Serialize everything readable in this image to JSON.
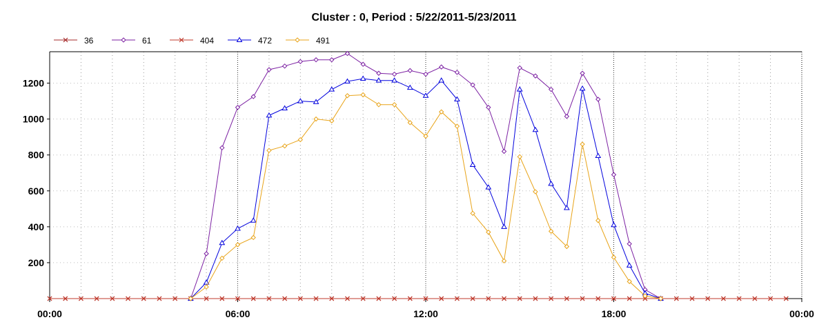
{
  "chart_data": {
    "type": "line",
    "title": "Cluster : 0, Period : 5/22/2011-5/23/2011",
    "xlabel": "",
    "ylabel": "",
    "x_unit": "hours",
    "xlim": [
      0,
      24
    ],
    "ylim": [
      0,
      1375
    ],
    "x_tick_values": [
      0,
      6,
      12,
      18,
      24
    ],
    "x_tick_labels": [
      "00:00",
      "06:00",
      "12:00",
      "18:00",
      "00:00"
    ],
    "y_ticks": [
      200,
      400,
      600,
      800,
      1000,
      1200
    ],
    "grid": true,
    "legend_placement": "top-left",
    "x": [
      0,
      0.5,
      1,
      1.5,
      2,
      2.5,
      3,
      3.5,
      4,
      4.5,
      5,
      5.5,
      6,
      6.5,
      7,
      7.5,
      8,
      8.5,
      9,
      9.5,
      10,
      10.5,
      11,
      11.5,
      12,
      12.5,
      13,
      13.5,
      14,
      14.5,
      15,
      15.5,
      16,
      16.5,
      17,
      17.5,
      18,
      18.5,
      19,
      19.5,
      20,
      20.5,
      21,
      21.5,
      22,
      22.5,
      23,
      23.5
    ],
    "series": [
      {
        "name": "36",
        "color": "#a52a2a",
        "marker": "x",
        "values": [
          0,
          0,
          0,
          0,
          0,
          0,
          0,
          0,
          0,
          0,
          0,
          0,
          0,
          0,
          0,
          0,
          0,
          0,
          0,
          0,
          0,
          0,
          0,
          0,
          0,
          0,
          0,
          0,
          0,
          0,
          0,
          0,
          0,
          0,
          0,
          0,
          0,
          0,
          0,
          0,
          0,
          0,
          0,
          0,
          0,
          0,
          0,
          0
        ]
      },
      {
        "name": "61",
        "color": "#7b1fa2",
        "marker": "diamond",
        "values": [
          null,
          null,
          null,
          null,
          null,
          null,
          null,
          null,
          null,
          0,
          250,
          840,
          1065,
          1125,
          1275,
          1295,
          1320,
          1330,
          1330,
          1365,
          1305,
          1255,
          1250,
          1270,
          1250,
          1290,
          1260,
          1190,
          1065,
          820,
          1285,
          1240,
          1165,
          1015,
          1255,
          1110,
          690,
          305,
          50,
          0,
          null,
          null,
          null,
          null,
          null,
          null,
          null,
          null
        ]
      },
      {
        "name": "404",
        "color": "#c0392b",
        "marker": "x",
        "values": [
          0,
          0,
          0,
          0,
          0,
          0,
          0,
          0,
          0,
          0,
          0,
          0,
          0,
          0,
          0,
          0,
          0,
          0,
          0,
          0,
          0,
          0,
          0,
          0,
          0,
          0,
          0,
          0,
          0,
          0,
          0,
          0,
          0,
          0,
          0,
          0,
          0,
          0,
          0,
          0,
          0,
          0,
          0,
          0,
          0,
          0,
          0,
          0
        ]
      },
      {
        "name": "472",
        "color": "#0000dd",
        "marker": "triangle",
        "values": [
          null,
          null,
          null,
          null,
          null,
          null,
          null,
          null,
          null,
          0,
          90,
          310,
          390,
          435,
          1020,
          1060,
          1100,
          1095,
          1165,
          1210,
          1225,
          1215,
          1215,
          1175,
          1130,
          1215,
          1110,
          745,
          620,
          400,
          1165,
          940,
          640,
          505,
          1170,
          795,
          410,
          185,
          30,
          0,
          null,
          null,
          null,
          null,
          null,
          null,
          null,
          null
        ]
      },
      {
        "name": "491",
        "color": "#e8a317",
        "marker": "diamond",
        "values": [
          null,
          null,
          null,
          null,
          null,
          null,
          null,
          null,
          null,
          0,
          65,
          225,
          300,
          340,
          825,
          850,
          885,
          1000,
          990,
          1130,
          1135,
          1080,
          1080,
          980,
          905,
          1040,
          960,
          475,
          370,
          210,
          790,
          595,
          375,
          290,
          860,
          435,
          230,
          95,
          15,
          0,
          null,
          null,
          null,
          null,
          null,
          null,
          null,
          null
        ]
      }
    ]
  }
}
